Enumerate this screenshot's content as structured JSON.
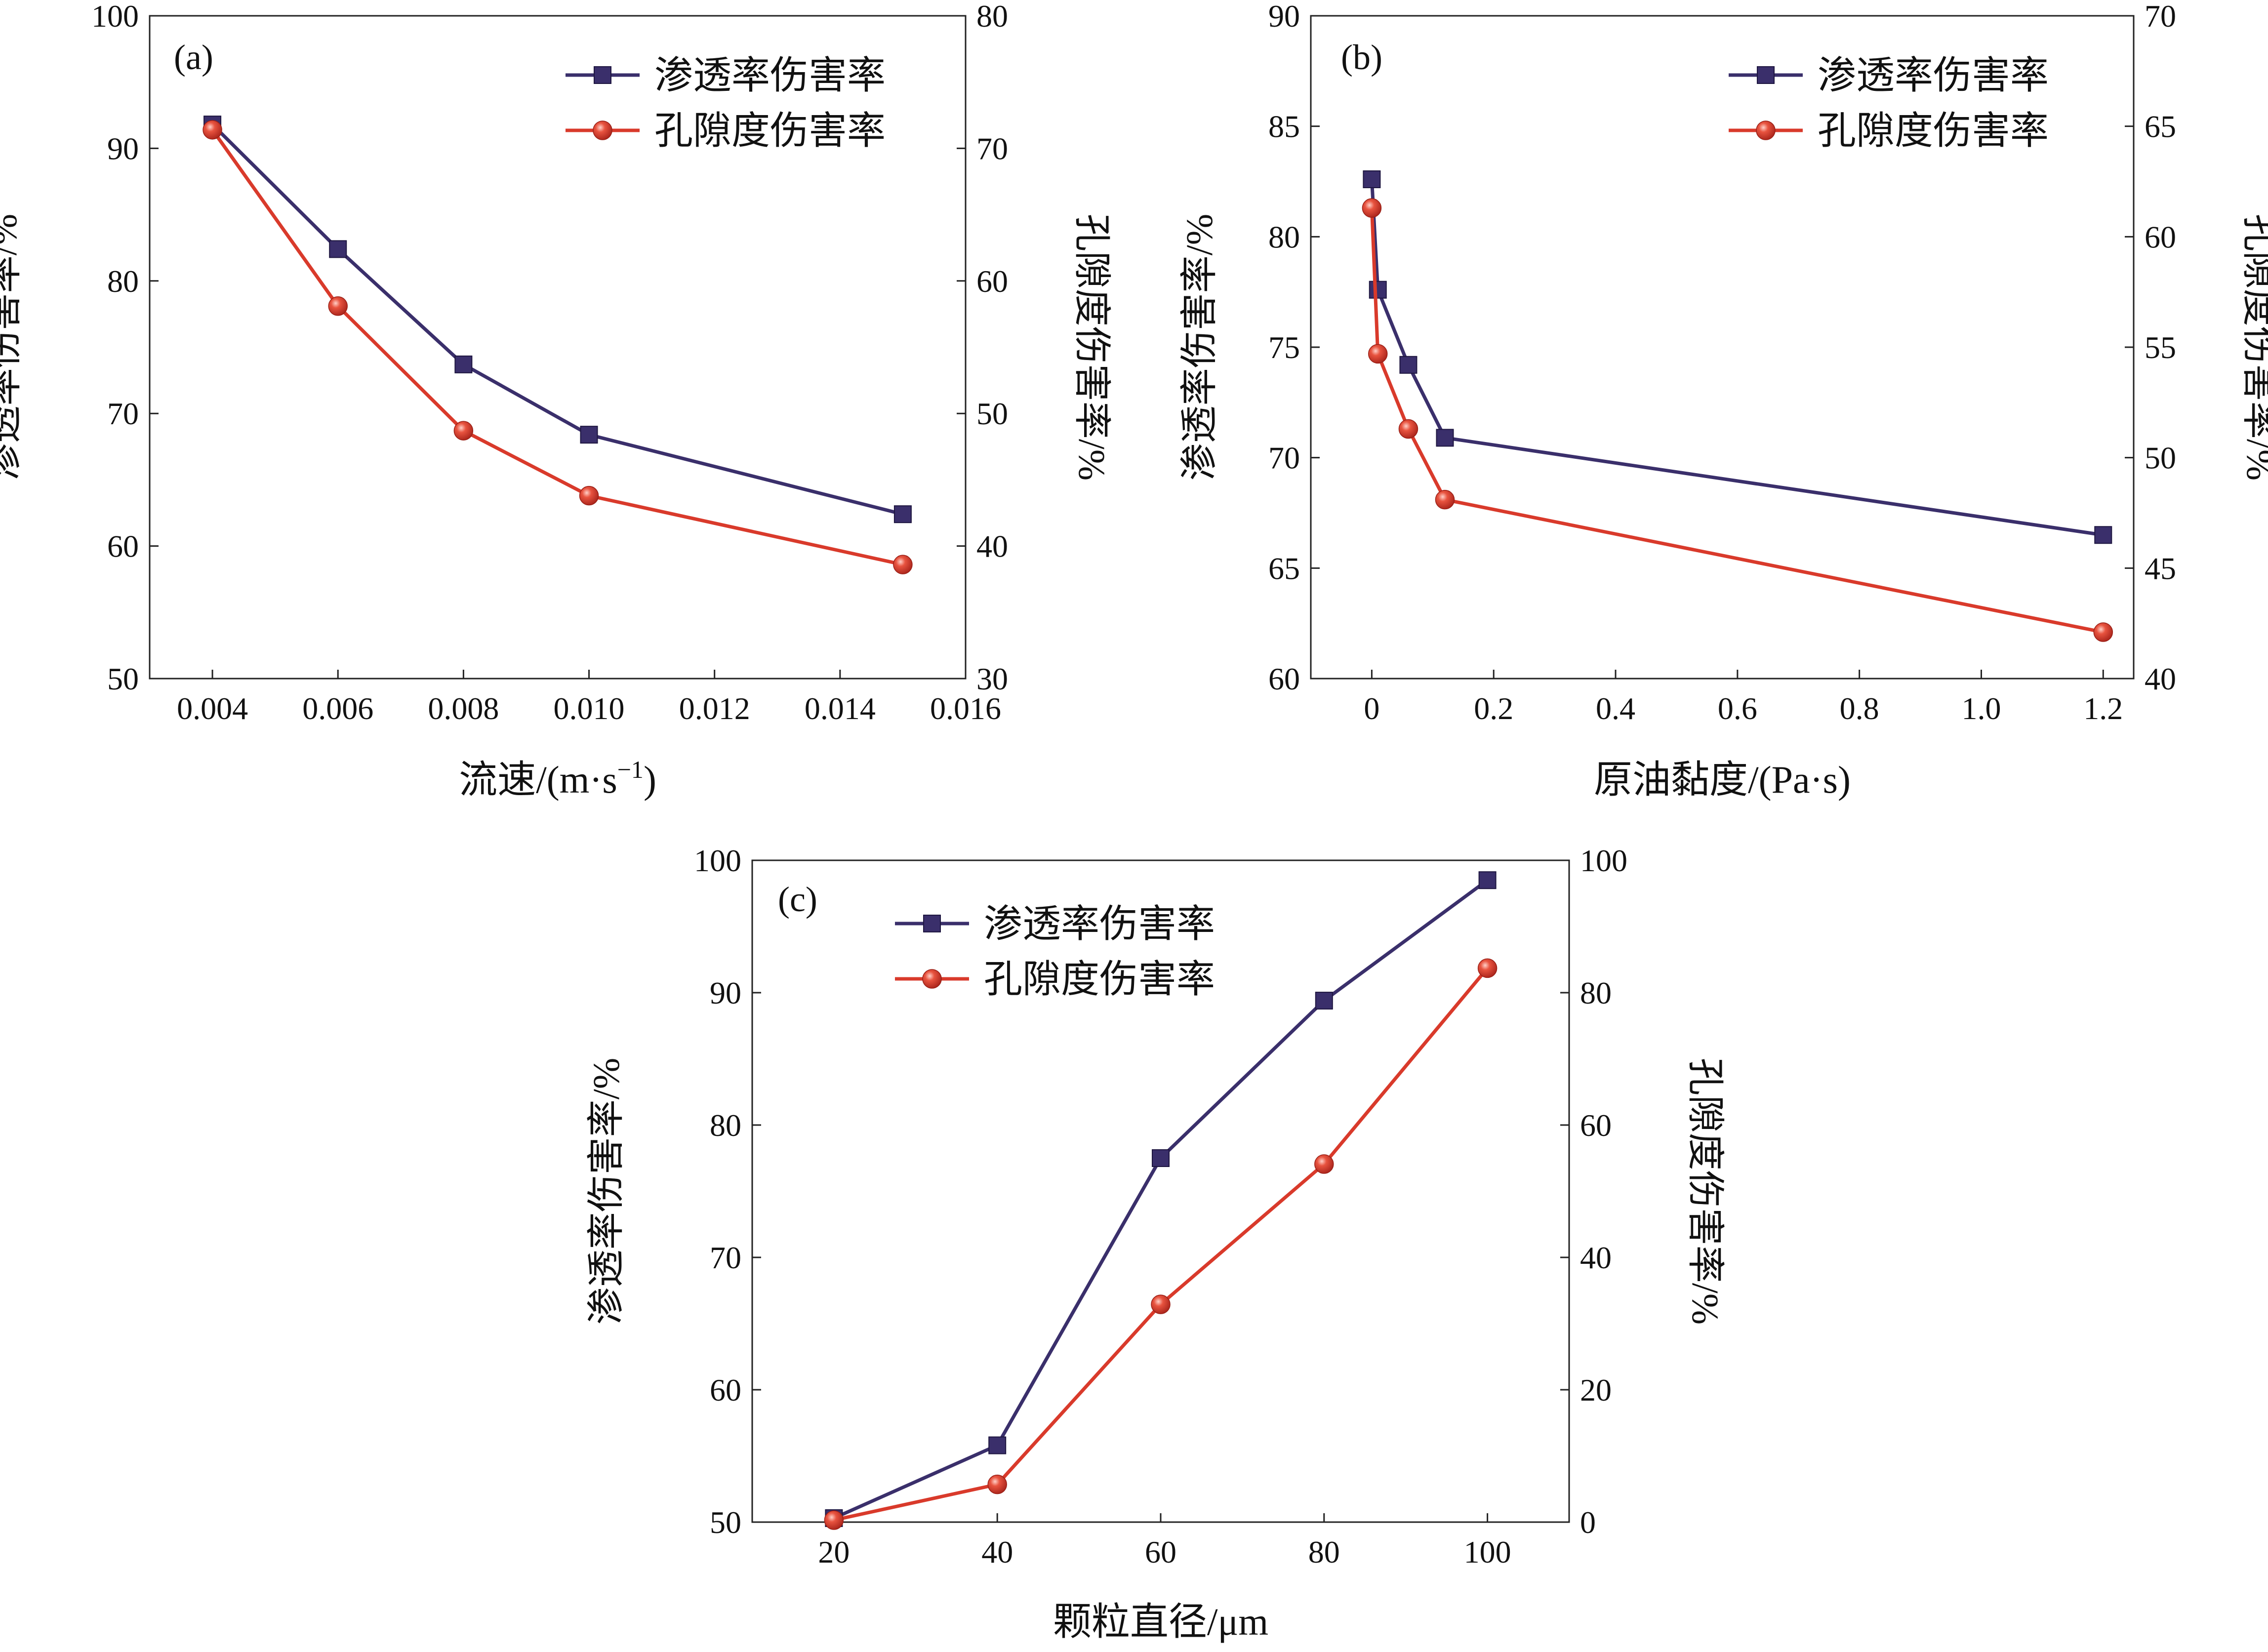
{
  "chart_data": [
    {
      "type": "line",
      "panel_label": "(a)",
      "xlabel": "流速/(m·s",
      "xlabel_sup": "−1",
      "xlabel_close": ")",
      "ylabel_left": "渗透率伤害率/%",
      "ylabel_right": "孔隙度伤害率/%",
      "xlim": [
        0.003,
        0.016
      ],
      "xticks": [
        0.004,
        0.006,
        0.008,
        0.01,
        0.012,
        0.014,
        0.016
      ],
      "xtick_labels": [
        "0.004",
        "0.006",
        "0.008",
        "0.010",
        "0.012",
        "0.014",
        "0.016"
      ],
      "ylim_left": [
        50,
        100
      ],
      "yticks_left": [
        50,
        60,
        70,
        80,
        90,
        100
      ],
      "ytick_labels_left": [
        "50",
        "60",
        "70",
        "80",
        "90",
        "100"
      ],
      "ylim_right": [
        30,
        80
      ],
      "yticks_right": [
        30,
        40,
        50,
        60,
        70,
        80
      ],
      "ytick_labels_right": [
        "30",
        "40",
        "50",
        "60",
        "70",
        "80"
      ],
      "legend_position": "top-right",
      "series": [
        {
          "name": "渗透率伤害率",
          "axis": "left",
          "color": "#3a2f6b",
          "marker": "square",
          "x": [
            0.004,
            0.006,
            0.008,
            0.01,
            0.015
          ],
          "y": [
            91.8,
            82.4,
            73.7,
            68.4,
            62.4
          ]
        },
        {
          "name": "孔隙度伤害率",
          "axis": "right",
          "color": "#d93a2b",
          "marker": "circle",
          "x": [
            0.004,
            0.006,
            0.008,
            0.01,
            0.015
          ],
          "y": [
            71.4,
            58.1,
            48.7,
            43.8,
            38.6
          ]
        }
      ]
    },
    {
      "type": "line",
      "panel_label": "(b)",
      "xlabel": "原油黏度/(Pa·s)",
      "ylabel_left": "渗透率伤害率/%",
      "ylabel_right": "孔隙度伤害率/%",
      "xlim": [
        -0.1,
        1.25
      ],
      "xticks": [
        0.0,
        0.2,
        0.4,
        0.6,
        0.8,
        1.0,
        1.2
      ],
      "xtick_labels": [
        "0",
        "0.2",
        "0.4",
        "0.6",
        "0.8",
        "1.0",
        "1.2"
      ],
      "ylim_left": [
        60,
        90
      ],
      "yticks_left": [
        60,
        65,
        70,
        75,
        80,
        85,
        90
      ],
      "ytick_labels_left": [
        "60",
        "65",
        "70",
        "75",
        "80",
        "85",
        "90"
      ],
      "ylim_right": [
        40,
        70
      ],
      "yticks_right": [
        40,
        45,
        50,
        55,
        60,
        65,
        70
      ],
      "ytick_labels_right": [
        "40",
        "45",
        "50",
        "55",
        "60",
        "65",
        "70"
      ],
      "legend_position": "top-right",
      "series": [
        {
          "name": "渗透率伤害率",
          "axis": "left",
          "color": "#3a2f6b",
          "marker": "square",
          "x": [
            0.0,
            0.01,
            0.06,
            0.12,
            1.2
          ],
          "y": [
            82.6,
            77.6,
            74.2,
            70.9,
            66.5
          ]
        },
        {
          "name": "孔隙度伤害率",
          "axis": "right",
          "color": "#d93a2b",
          "marker": "circle",
          "x": [
            0.0,
            0.01,
            0.06,
            0.12,
            1.2
          ],
          "y": [
            61.3,
            54.7,
            51.3,
            48.1,
            42.1
          ]
        }
      ]
    },
    {
      "type": "line",
      "panel_label": "(c)",
      "xlabel": "颗粒直径/μm",
      "ylabel_left": "渗透率伤害率/%",
      "ylabel_right": "孔隙度伤害率/%",
      "xlim": [
        10,
        110
      ],
      "xticks": [
        20,
        40,
        60,
        80,
        100
      ],
      "xtick_labels": [
        "20",
        "40",
        "60",
        "80",
        "100"
      ],
      "ylim_left": [
        50,
        100
      ],
      "yticks_left": [
        50,
        60,
        70,
        80,
        90,
        100
      ],
      "ytick_labels_left": [
        "50",
        "60",
        "70",
        "80",
        "90",
        "100"
      ],
      "ylim_right": [
        0,
        100
      ],
      "yticks_right": [
        0,
        20,
        40,
        60,
        80,
        100
      ],
      "ytick_labels_right": [
        "0",
        "20",
        "40",
        "60",
        "80",
        "100"
      ],
      "legend_position": "top-left",
      "series": [
        {
          "name": "渗透率伤害率",
          "axis": "left",
          "color": "#3a2f6b",
          "marker": "square",
          "x": [
            20,
            40,
            60,
            80,
            100
          ],
          "y": [
            50.3,
            55.8,
            77.5,
            89.4,
            98.5
          ]
        },
        {
          "name": "孔隙度伤害率",
          "axis": "right",
          "color": "#d93a2b",
          "marker": "circle",
          "x": [
            20,
            40,
            60,
            80,
            100
          ],
          "y": [
            0.3,
            5.7,
            32.9,
            54.1,
            83.7
          ]
        }
      ]
    }
  ]
}
